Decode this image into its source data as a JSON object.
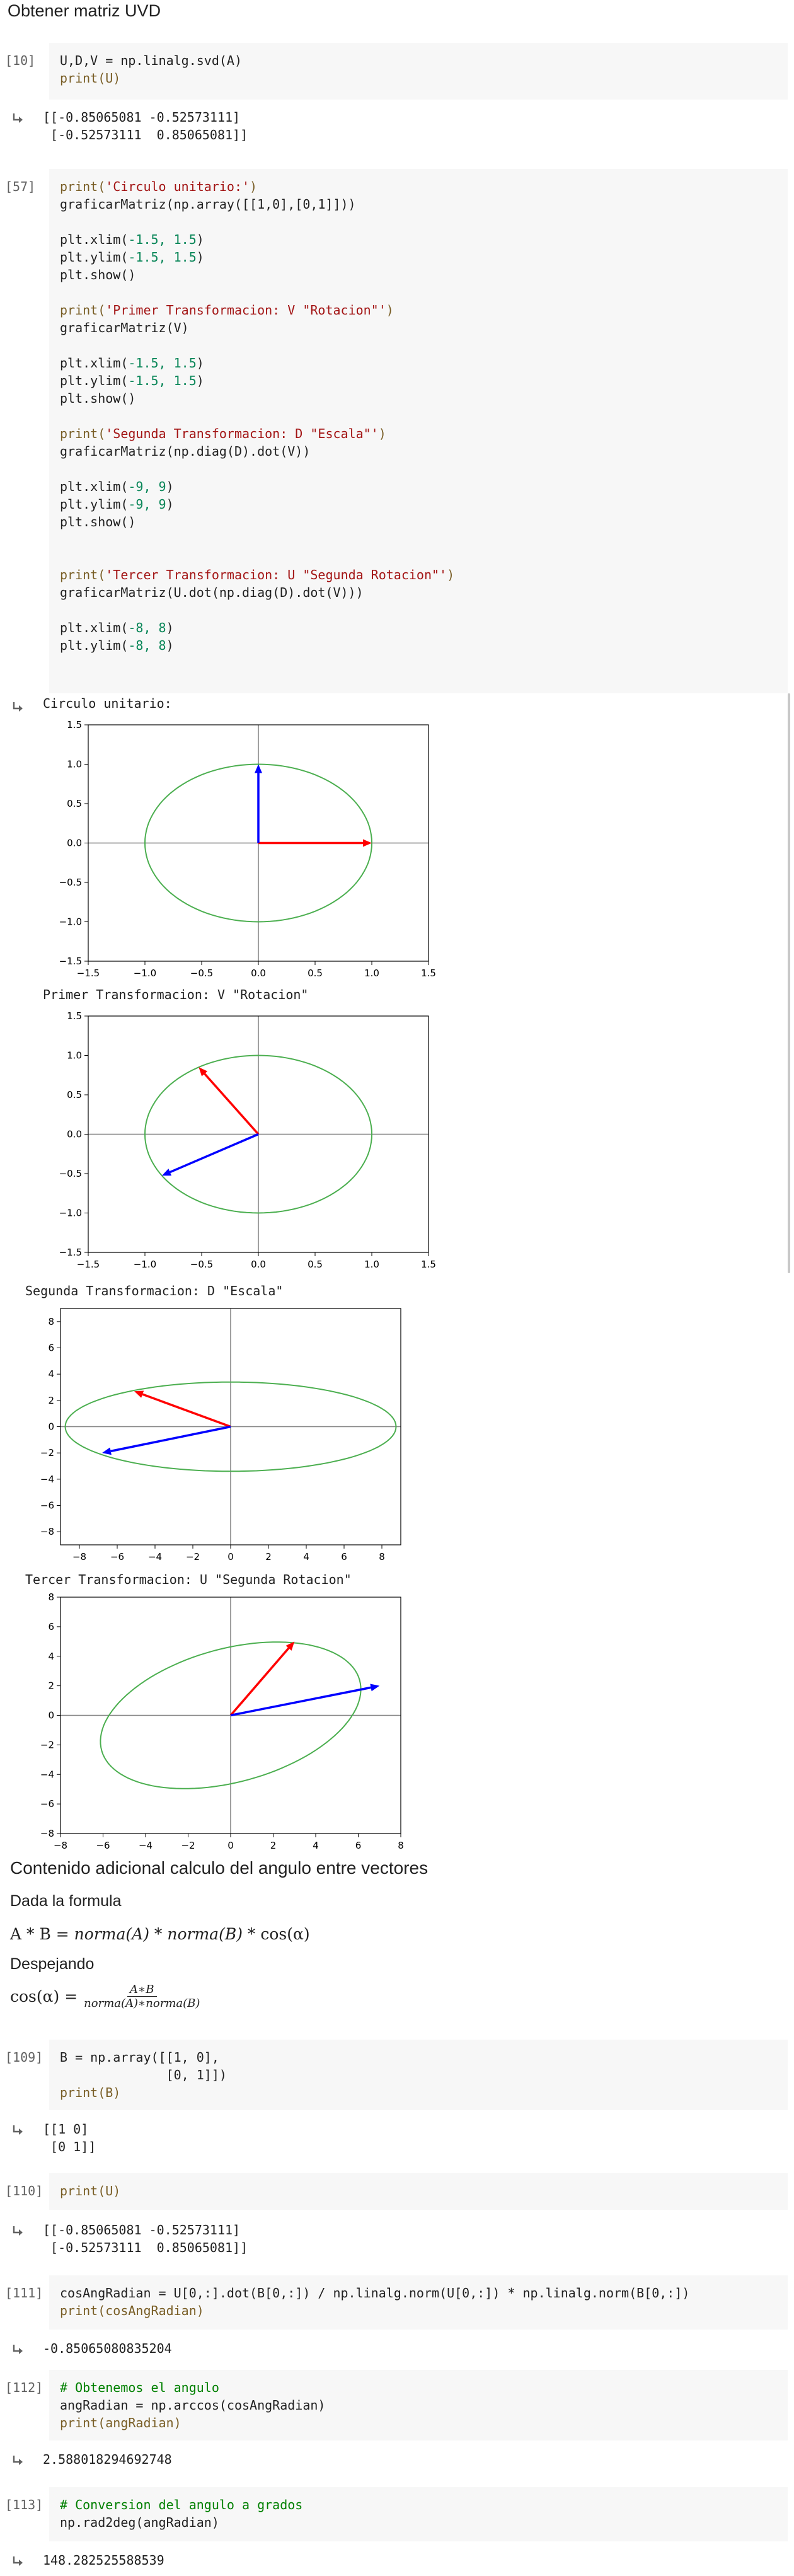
{
  "section_title": "Obtener matriz UVD",
  "cells": {
    "c10": {
      "prompt": "[10]",
      "code": [
        "U,D,V = np.linalg.svd(A)",
        "print(U)"
      ],
      "output": [
        "[[-0.85065081 -0.52573111]",
        " [-0.52573111  0.85065081]]"
      ]
    },
    "c57": {
      "prompt": "[57]",
      "code": [
        "print('Circulo unitario:')",
        "graficarMatriz(np.array([[1,0],[0,1]]))",
        "",
        "plt.xlim(-1.5, 1.5)",
        "plt.ylim(-1.5, 1.5)",
        "plt.show()",
        "",
        "print('Primer Transformacion: V \"Rotacion\"')",
        "graficarMatriz(V)",
        "",
        "plt.xlim(-1.5, 1.5)",
        "plt.ylim(-1.5, 1.5)",
        "plt.show()",
        "",
        "print('Segunda Transformacion: D \"Escala\"')",
        "graficarMatriz(np.diag(D).dot(V))",
        "",
        "plt.xlim(-9, 9)",
        "plt.ylim(-9, 9)",
        "plt.show()",
        "",
        "",
        "print('Tercer Transformacion: U \"Segunda Rotacion\"')",
        "graficarMatriz(U.dot(np.diag(D).dot(V)))",
        "",
        "plt.xlim(-8, 8)",
        "plt.ylim(-8, 8)"
      ]
    }
  },
  "plots": [
    {
      "label": "Circulo unitario:",
      "chart_data": {
        "type": "line",
        "xlim": [
          -1.5,
          1.5
        ],
        "ylim": [
          -1.5,
          1.5
        ],
        "xticks": [
          "−1.5",
          "−1.0",
          "−0.5",
          "0.0",
          "0.5",
          "1.0",
          "1.5"
        ],
        "yticks": [
          "1.5",
          "1.0",
          "0.5",
          "0.0",
          "−0.5",
          "−1.0",
          "−1.5"
        ],
        "xtick_values": [
          -1.5,
          -1.0,
          -0.5,
          0.0,
          0.5,
          1.0,
          1.5
        ],
        "ytick_values": [
          1.5,
          1.0,
          0.5,
          0.0,
          -0.5,
          -1.0,
          -1.5
        ],
        "ellipse_matrix": [
          [
            1,
            0
          ],
          [
            0,
            1
          ]
        ],
        "vectors": [
          {
            "color": "#ff0000",
            "x": 1.0,
            "y": 0.0
          },
          {
            "color": "#0000ff",
            "x": 0.0,
            "y": 1.0
          }
        ]
      }
    },
    {
      "label": "Primer Transformacion: V \"Rotacion\"",
      "chart_data": {
        "type": "line",
        "xlim": [
          -1.5,
          1.5
        ],
        "ylim": [
          -1.5,
          1.5
        ],
        "xticks": [
          "−1.5",
          "−1.0",
          "−0.5",
          "0.0",
          "0.5",
          "1.0",
          "1.5"
        ],
        "yticks": [
          "1.5",
          "1.0",
          "0.5",
          "0.0",
          "−0.5",
          "−1.0",
          "−1.5"
        ],
        "xtick_values": [
          -1.5,
          -1.0,
          -0.5,
          0.0,
          0.5,
          1.0,
          1.5
        ],
        "ytick_values": [
          1.5,
          1.0,
          0.5,
          0.0,
          -0.5,
          -1.0,
          -1.5
        ],
        "ellipse_matrix": [
          [
            1,
            0
          ],
          [
            0,
            1
          ]
        ],
        "vectors": [
          {
            "color": "#ff0000",
            "x": -0.5257,
            "y": 0.8507
          },
          {
            "color": "#0000ff",
            "x": -0.8507,
            "y": -0.5257
          }
        ]
      }
    },
    {
      "label": "Segunda Transformacion: D \"Escala\"",
      "chart_data": {
        "type": "line",
        "xlim": [
          -9,
          9
        ],
        "ylim": [
          -9,
          9
        ],
        "xticks": [
          "−8",
          "−6",
          "−4",
          "−2",
          "0",
          "2",
          "4",
          "6",
          "8"
        ],
        "yticks": [
          "8",
          "6",
          "4",
          "2",
          "0",
          "−2",
          "−4",
          "−6",
          "−8"
        ],
        "xtick_values": [
          -8,
          -6,
          -4,
          -2,
          0,
          2,
          4,
          6,
          8
        ],
        "ytick_values": [
          8,
          6,
          4,
          2,
          0,
          -2,
          -4,
          -6,
          -8
        ],
        "ellipse_matrix": [
          [
            8.75,
            0
          ],
          [
            0,
            3.4
          ]
        ],
        "vectors": [
          {
            "color": "#ff0000",
            "x": -5.1,
            "y": 2.7
          },
          {
            "color": "#0000ff",
            "x": -6.8,
            "y": -2.0
          }
        ]
      }
    },
    {
      "label": "Tercer Transformacion: U \"Segunda Rotacion\"",
      "chart_data": {
        "type": "line",
        "xlim": [
          -8,
          8
        ],
        "ylim": [
          -8,
          8
        ],
        "xticks": [
          "−8",
          "−6",
          "−4",
          "−2",
          "0",
          "2",
          "4",
          "6",
          "8"
        ],
        "yticks": [
          "8",
          "6",
          "4",
          "2",
          "0",
          "−2",
          "−4",
          "−6",
          "−8"
        ],
        "xtick_values": [
          -8,
          -6,
          -4,
          -2,
          0,
          2,
          4,
          6,
          8
        ],
        "ytick_values": [
          8,
          6,
          4,
          2,
          0,
          -2,
          -4,
          -6,
          -8
        ],
        "ellipse_matrix": [
          [
            5.75,
            2.1
          ],
          [
            3.25,
            -3.75
          ]
        ],
        "vectors": [
          {
            "color": "#ff0000",
            "x": 3.0,
            "y": 5.0
          },
          {
            "color": "#0000ff",
            "x": 7.0,
            "y": 2.0
          }
        ]
      }
    }
  ],
  "markdown": {
    "heading": "Contenido adicional calculo del angulo entre vectores",
    "p1": "Dada la formula",
    "formula1_a": "A * B = ",
    "formula1_b": "norma(A)",
    "formula1_c": " * ",
    "formula1_d": "norma(B)",
    "formula1_e": " * cos(α)",
    "p2": "Despejando",
    "formula2_lhs": "cos(α) = ",
    "formula2_num": "A∗B",
    "formula2_den": "norma(A)∗norma(B)"
  },
  "cells2": {
    "c109": {
      "prompt": "[109]",
      "code": [
        "B = np.array([[1, 0],",
        "              [0, 1]])",
        "print(B)"
      ],
      "output": [
        "[[1 0]",
        " [0 1]]"
      ]
    },
    "c110": {
      "prompt": "[110]",
      "code": [
        "print(U)"
      ],
      "output": [
        "[[-0.85065081 -0.52573111]",
        " [-0.52573111  0.85065081]]"
      ]
    },
    "c111": {
      "prompt": "[111]",
      "code": [
        "cosAngRadian = U[0,:].dot(B[0,:]) / np.linalg.norm(U[0,:]) * np.linalg.norm(B[0,:])",
        "print(cosAngRadian)"
      ],
      "output": [
        "-0.85065080835204"
      ]
    },
    "c112": {
      "prompt": "[112]",
      "code": [
        "# Obtenemos el angulo",
        "angRadian = np.arccos(cosAngRadian)",
        "print(angRadian)"
      ],
      "output": [
        "2.588018294692748"
      ]
    },
    "c113": {
      "prompt": "[113]",
      "code": [
        "# Conversion del angulo a grados",
        "np.rad2deg(angRadian)"
      ],
      "output": [
        "148.282525588539"
      ]
    }
  }
}
